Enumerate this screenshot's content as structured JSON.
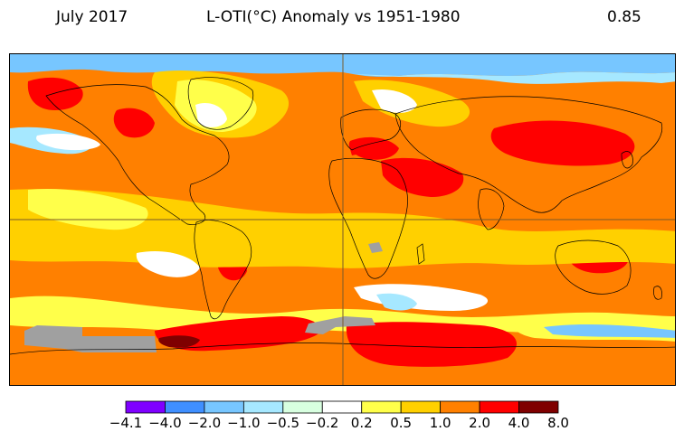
{
  "header": {
    "period": "July 2017",
    "title": "L-OTI(°C) Anomaly vs 1951-1980",
    "global_mean": "0.85"
  },
  "legend": {
    "bins": [
      {
        "color": "#7f00ff"
      },
      {
        "color": "#3f8fff"
      },
      {
        "color": "#77c6ff"
      },
      {
        "color": "#a6e8ff"
      },
      {
        "color": "#d8ffe0"
      },
      {
        "color": "#ffffff"
      },
      {
        "color": "#ffff4a"
      },
      {
        "color": "#ffd000"
      },
      {
        "color": "#ff8000"
      },
      {
        "color": "#ff0000"
      },
      {
        "color": "#7f0000"
      }
    ],
    "tick_labels": [
      "−4.1",
      "−4.0",
      "−2.0",
      "−1.0",
      "−0.5",
      "−0.2",
      "0.2",
      "0.5",
      "1.0",
      "2.0",
      "4.0",
      "8.0"
    ]
  },
  "map": {
    "projection": "equirectangular",
    "no_data_color": "#a0a0a0",
    "coastline_color": "#000000",
    "graticule": "equator and prime meridian"
  }
}
